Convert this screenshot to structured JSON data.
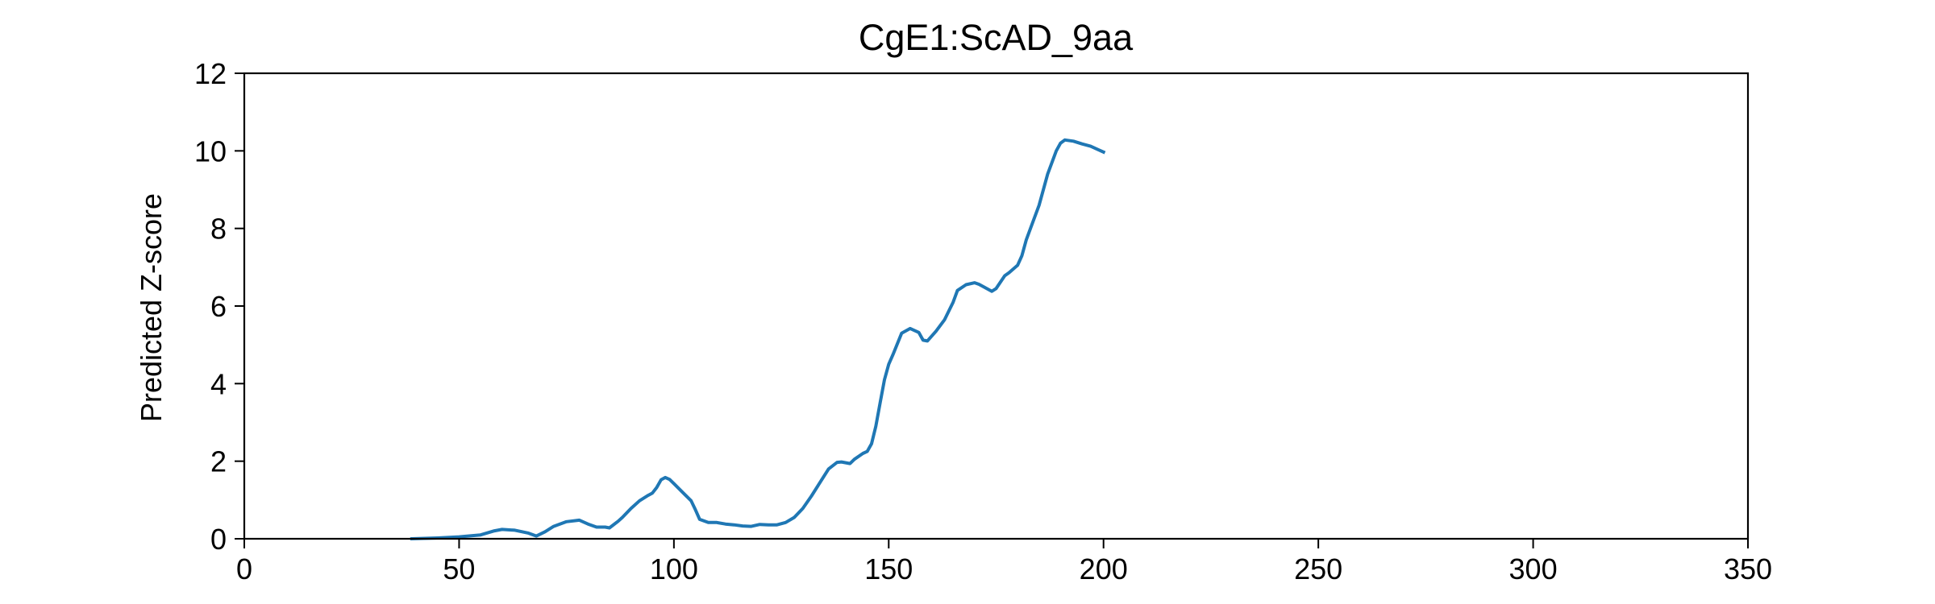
{
  "chart_data": {
    "type": "line",
    "title": "CgE1:ScAD_9aa",
    "xlabel": "",
    "ylabel": "Predicted Z-score",
    "xlim": [
      0,
      350
    ],
    "ylim": [
      0,
      12
    ],
    "xticks": [
      0,
      50,
      100,
      150,
      200,
      250,
      300,
      350
    ],
    "yticks": [
      0,
      2,
      4,
      6,
      8,
      10,
      12
    ],
    "grid": false,
    "series": [
      {
        "color": "#1f77b4",
        "x": [
          39,
          45,
          50,
          55,
          58,
          60,
          63,
          66,
          68,
          70,
          72,
          75,
          78,
          80,
          82,
          84,
          85,
          87,
          88,
          90,
          92,
          94,
          95,
          96,
          97,
          98,
          99,
          100,
          102,
          104,
          105,
          106,
          108,
          110,
          112,
          114,
          116,
          118,
          120,
          122,
          124,
          126,
          128,
          130,
          132,
          134,
          136,
          138,
          139,
          141,
          142,
          144,
          145,
          146,
          147,
          148,
          149,
          150,
          151,
          153,
          155,
          157,
          158,
          159,
          161,
          163,
          165,
          166,
          168,
          170,
          171,
          172,
          174,
          175,
          177,
          178,
          180,
          181,
          182,
          183,
          185,
          187,
          189,
          190,
          191,
          193,
          195,
          197,
          199,
          200
        ],
        "y": [
          0.0,
          0.02,
          0.05,
          0.1,
          0.2,
          0.24,
          0.22,
          0.15,
          0.07,
          0.18,
          0.32,
          0.44,
          0.48,
          0.38,
          0.3,
          0.3,
          0.28,
          0.45,
          0.55,
          0.78,
          0.98,
          1.12,
          1.18,
          1.32,
          1.52,
          1.58,
          1.53,
          1.42,
          1.2,
          0.98,
          0.75,
          0.5,
          0.42,
          0.42,
          0.38,
          0.36,
          0.33,
          0.32,
          0.37,
          0.36,
          0.36,
          0.42,
          0.55,
          0.78,
          1.1,
          1.45,
          1.8,
          1.97,
          1.98,
          1.94,
          2.05,
          2.2,
          2.25,
          2.45,
          2.9,
          3.5,
          4.1,
          4.5,
          4.75,
          5.3,
          5.42,
          5.32,
          5.12,
          5.1,
          5.35,
          5.65,
          6.1,
          6.4,
          6.55,
          6.6,
          6.56,
          6.5,
          6.38,
          6.45,
          6.78,
          6.86,
          7.05,
          7.3,
          7.7,
          8.0,
          8.6,
          9.4,
          10.0,
          10.2,
          10.28,
          10.25,
          10.18,
          10.12,
          10.02,
          9.97
        ]
      }
    ]
  }
}
